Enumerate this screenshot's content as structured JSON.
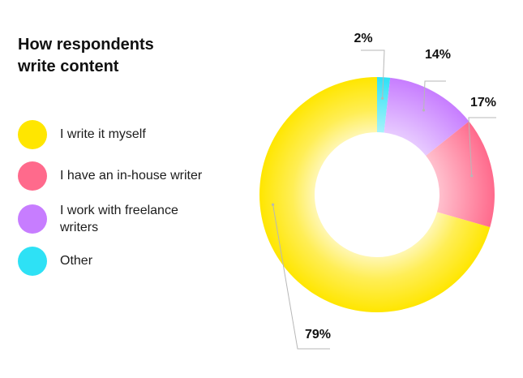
{
  "chart_data": {
    "type": "pie",
    "variant": "donut",
    "title": "How respondents write content",
    "categories": [
      "I write it myself",
      "I have an in-house writer",
      "I work with freelance writers",
      "Other"
    ],
    "values": [
      79,
      17,
      14,
      2
    ],
    "labels": [
      "79%",
      "17%",
      "14%",
      "2%"
    ],
    "legend_position": "left"
  },
  "title_lines": [
    "How respondents",
    "write content"
  ],
  "legend": [
    {
      "lines": [
        "I write it myself"
      ],
      "color": "#FFE600"
    },
    {
      "lines": [
        "I have an in-house writer"
      ],
      "color": "#FF6A8C"
    },
    {
      "lines": [
        "I work with freelance",
        "writers"
      ],
      "color": "#C77DFF"
    },
    {
      "lines": [
        "Other"
      ],
      "color": "#2EE1F5"
    }
  ],
  "colors": {
    "yellow": "#FFE600",
    "pink": "#FF6A8C",
    "purple": "#C77DFF",
    "cyan": "#2EE1F5",
    "leader": "#b7b7b7"
  }
}
